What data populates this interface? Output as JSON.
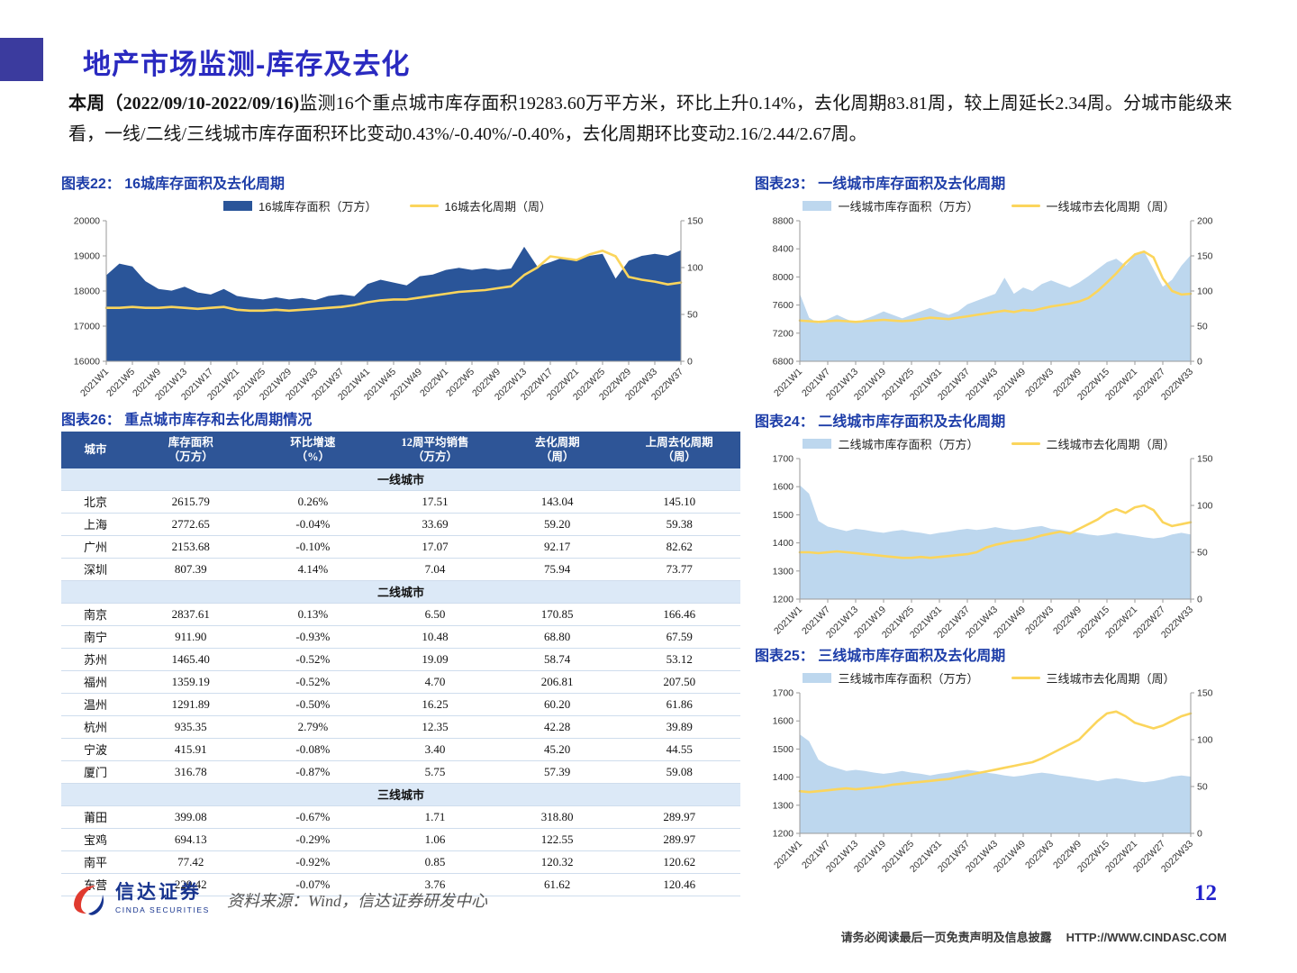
{
  "header": {
    "title": "地产市场监测-库存及去化"
  },
  "summary": {
    "lead": "本周（2022/09/10-2022/09/16)",
    "body": "监测16个重点城市库存面积19283.60万平方米，环比上升0.14%，去化周期83.81周，较上周延长2.34周。分城市能级来看，一线/二线/三线城市库存面积环比变动0.43%/-0.40%/-0.40%，去化周期环比变动2.16/2.44/2.67周。"
  },
  "chart_data": [
    {
      "type": "area+line",
      "title": "图表22：  16城库存面积及去化周期",
      "x_labels": [
        "2021W1",
        "2021W5",
        "2021W9",
        "2021W13",
        "2021W17",
        "2021W21",
        "2021W25",
        "2021W29",
        "2021W33",
        "2021W37",
        "2021W41",
        "2021W45",
        "2021W49",
        "2022W1",
        "2022W5",
        "2022W9",
        "2022W13",
        "2022W17",
        "2022W21",
        "2022W25",
        "2022W29",
        "2022W33",
        "2022W37"
      ],
      "left_axis": {
        "min": 16000,
        "max": 20000,
        "ticks": [
          16000,
          17000,
          18000,
          19000,
          20000
        ]
      },
      "right_axis": {
        "min": 0,
        "max": 150,
        "ticks": [
          0,
          50,
          100,
          150
        ]
      },
      "series": [
        {
          "name": "16城库存面积（万方）",
          "type": "area",
          "axis": "left",
          "color": "#2a5599",
          "values": [
            18450,
            18780,
            18700,
            18280,
            18060,
            18010,
            18120,
            17960,
            17900,
            18060,
            17860,
            17800,
            17760,
            17820,
            17760,
            17800,
            17740,
            17860,
            17900,
            17850,
            18200,
            18320,
            18240,
            18160,
            18420,
            18470,
            18600,
            18660,
            18600,
            18650,
            18600,
            18640,
            19260,
            18700,
            18820,
            18960,
            18900,
            19000,
            19060,
            18350,
            18860,
            19000,
            19060,
            19000,
            19160
          ]
        },
        {
          "name": "16城去化周期（周）",
          "type": "line",
          "axis": "right",
          "color": "#fbd55c",
          "values": [
            57,
            57,
            58,
            57,
            57,
            58,
            57,
            56,
            57,
            58,
            55,
            54,
            54,
            55,
            54,
            55,
            56,
            57,
            58,
            60,
            63,
            65,
            66,
            66,
            68,
            70,
            72,
            74,
            75,
            76,
            78,
            80,
            92,
            100,
            112,
            110,
            108,
            114,
            118,
            112,
            90,
            87,
            85,
            82,
            84
          ]
        }
      ]
    },
    {
      "type": "area+line",
      "title": "图表23：  一线城市库存面积及去化周期",
      "x_labels": [
        "2021W1",
        "2021W7",
        "2021W13",
        "2021W19",
        "2021W25",
        "2021W31",
        "2021W37",
        "2021W43",
        "2021W49",
        "2022W3",
        "2022W9",
        "2022W15",
        "2022W21",
        "2022W27",
        "2022W33"
      ],
      "left_axis": {
        "min": 6800,
        "max": 8800,
        "ticks": [
          6800,
          7200,
          7600,
          8000,
          8400,
          8800
        ]
      },
      "right_axis": {
        "min": 0,
        "max": 200,
        "ticks": [
          0,
          50,
          100,
          150,
          200
        ]
      },
      "series": [
        {
          "name": "一线城市库存面积（万方）",
          "type": "area",
          "axis": "left",
          "color": "#bdd7ee",
          "values": [
            7760,
            7420,
            7340,
            7400,
            7460,
            7400,
            7350,
            7400,
            7450,
            7510,
            7460,
            7410,
            7460,
            7510,
            7560,
            7500,
            7460,
            7510,
            7610,
            7660,
            7710,
            7760,
            7990,
            7760,
            7850,
            7800,
            7900,
            7950,
            7900,
            7850,
            7920,
            8010,
            8110,
            8210,
            8260,
            8160,
            8310,
            8360,
            8110,
            7860,
            7960,
            8160,
            8310
          ]
        },
        {
          "name": "一线城市去化周期（周）",
          "type": "line",
          "axis": "right",
          "color": "#fbd55c",
          "values": [
            58,
            57,
            56,
            57,
            58,
            57,
            56,
            57,
            58,
            59,
            58,
            57,
            58,
            60,
            62,
            61,
            60,
            62,
            64,
            66,
            68,
            70,
            72,
            70,
            73,
            72,
            75,
            78,
            80,
            82,
            85,
            90,
            100,
            112,
            125,
            140,
            152,
            156,
            148,
            118,
            100,
            95,
            96
          ]
        }
      ]
    },
    {
      "type": "area+line",
      "title": "图表24：  二线城市库存面积及去化周期",
      "x_labels": [
        "2021W1",
        "2021W7",
        "2021W13",
        "2021W19",
        "2021W25",
        "2021W31",
        "2021W37",
        "2021W43",
        "2021W49",
        "2022W3",
        "2022W9",
        "2022W15",
        "2022W21",
        "2022W27",
        "2022W33"
      ],
      "left_axis": {
        "min": 1200,
        "max": 1700,
        "ticks": [
          1200,
          1300,
          1400,
          1500,
          1600,
          1700
        ]
      },
      "right_axis": {
        "min": 0,
        "max": 150,
        "ticks": [
          0,
          50,
          100,
          150
        ]
      },
      "series": [
        {
          "name": "二线城市库存面积（万方）",
          "type": "area",
          "axis": "left",
          "color": "#bdd7ee",
          "values": [
            1605,
            1575,
            1478,
            1458,
            1450,
            1442,
            1450,
            1446,
            1440,
            1436,
            1442,
            1446,
            1440,
            1436,
            1430,
            1436,
            1440,
            1446,
            1450,
            1446,
            1450,
            1456,
            1450,
            1446,
            1450,
            1456,
            1460,
            1450,
            1446,
            1440,
            1436,
            1430,
            1426,
            1430,
            1436,
            1430,
            1426,
            1420,
            1416,
            1420,
            1430,
            1436,
            1430
          ]
        },
        {
          "name": "二线城市去化周期（周）",
          "type": "line",
          "axis": "right",
          "color": "#fbd55c",
          "values": [
            50,
            50,
            49,
            50,
            51,
            50,
            49,
            48,
            47,
            46,
            45,
            44,
            44,
            45,
            44,
            45,
            46,
            47,
            48,
            50,
            55,
            58,
            60,
            62,
            63,
            65,
            68,
            70,
            72,
            70,
            75,
            80,
            85,
            92,
            96,
            92,
            98,
            100,
            95,
            82,
            78,
            80,
            82
          ]
        }
      ]
    },
    {
      "type": "area+line",
      "title": "图表25：  三线城市库存面积及去化周期",
      "x_labels": [
        "2021W1",
        "2021W7",
        "2021W13",
        "2021W19",
        "2021W25",
        "2021W31",
        "2021W37",
        "2021W43",
        "2021W49",
        "2022W3",
        "2022W9",
        "2022W15",
        "2022W21",
        "2022W27",
        "2022W33"
      ],
      "left_axis": {
        "min": 1200,
        "max": 1700,
        "ticks": [
          1200,
          1300,
          1400,
          1500,
          1600,
          1700
        ]
      },
      "right_axis": {
        "min": 0,
        "max": 150,
        "ticks": [
          0,
          50,
          100,
          150
        ]
      },
      "series": [
        {
          "name": "三线城市库存面积（万方）",
          "type": "area",
          "axis": "left",
          "color": "#bdd7ee",
          "values": [
            1552,
            1528,
            1462,
            1442,
            1432,
            1422,
            1426,
            1422,
            1416,
            1412,
            1416,
            1422,
            1416,
            1412,
            1406,
            1412,
            1416,
            1422,
            1426,
            1422,
            1416,
            1412,
            1406,
            1402,
            1406,
            1412,
            1416,
            1412,
            1406,
            1402,
            1396,
            1392,
            1386,
            1392,
            1396,
            1392,
            1386,
            1382,
            1386,
            1392,
            1402,
            1406,
            1402
          ]
        },
        {
          "name": "三线城市去化周期（周）",
          "type": "line",
          "axis": "right",
          "color": "#fbd55c",
          "values": [
            45,
            44,
            45,
            46,
            47,
            48,
            47,
            48,
            49,
            50,
            52,
            53,
            54,
            55,
            56,
            57,
            58,
            60,
            62,
            64,
            66,
            68,
            70,
            72,
            74,
            76,
            80,
            85,
            90,
            95,
            100,
            110,
            120,
            128,
            130,
            125,
            118,
            115,
            112,
            115,
            120,
            125,
            128
          ]
        }
      ]
    }
  ],
  "table": {
    "title": "图表26：  重点城市库存和去化周期情况",
    "headers": [
      "城市",
      "库存面积\n（万方）",
      "环比增速\n（%）",
      "12周平均销售\n（万方）",
      "去化周期\n（周）",
      "上周去化周期\n（周）"
    ],
    "groups": [
      {
        "name": "一线城市",
        "rows": [
          [
            "北京",
            "2615.79",
            "0.26%",
            "17.51",
            "143.04",
            "145.10"
          ],
          [
            "上海",
            "2772.65",
            "-0.04%",
            "33.69",
            "59.20",
            "59.38"
          ],
          [
            "广州",
            "2153.68",
            "-0.10%",
            "17.07",
            "92.17",
            "82.62"
          ],
          [
            "深圳",
            "807.39",
            "4.14%",
            "7.04",
            "75.94",
            "73.77"
          ]
        ]
      },
      {
        "name": "二线城市",
        "rows": [
          [
            "南京",
            "2837.61",
            "0.13%",
            "6.50",
            "170.85",
            "166.46"
          ],
          [
            "南宁",
            "911.90",
            "-0.93%",
            "10.48",
            "68.80",
            "67.59"
          ],
          [
            "苏州",
            "1465.40",
            "-0.52%",
            "19.09",
            "58.74",
            "53.12"
          ],
          [
            "福州",
            "1359.19",
            "-0.52%",
            "4.70",
            "206.81",
            "207.50"
          ],
          [
            "温州",
            "1291.89",
            "-0.50%",
            "16.25",
            "60.20",
            "61.86"
          ],
          [
            "杭州",
            "935.35",
            "2.79%",
            "12.35",
            "42.28",
            "39.89"
          ],
          [
            "宁波",
            "415.91",
            "-0.08%",
            "3.40",
            "45.20",
            "44.55"
          ],
          [
            "厦门",
            "316.78",
            "-0.87%",
            "5.75",
            "57.39",
            "59.08"
          ]
        ]
      },
      {
        "name": "三线城市",
        "rows": [
          [
            "莆田",
            "399.08",
            "-0.67%",
            "1.71",
            "318.80",
            "289.97"
          ],
          [
            "宝鸡",
            "694.13",
            "-0.29%",
            "1.06",
            "122.55",
            "289.97"
          ],
          [
            "南平",
            "77.42",
            "-0.92%",
            "0.85",
            "120.32",
            "120.62"
          ],
          [
            "东营",
            "229.42",
            "-0.07%",
            "3.76",
            "61.62",
            "120.46"
          ]
        ]
      }
    ]
  },
  "footer": {
    "logo_cn": "信达证券",
    "logo_en": "CINDA SECURITIES",
    "source": "资料来源：Wind，信达证券研发中心",
    "page_number": "12",
    "disclaimer": "请务必阅读最后一页免责声明及信息披露",
    "url": "HTTP://WWW.CINDASC.COM"
  }
}
